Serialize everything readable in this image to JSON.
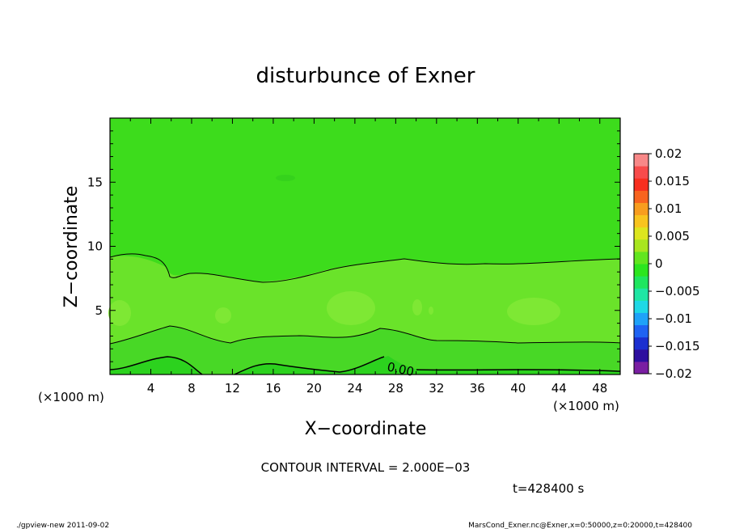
{
  "chart_data": {
    "type": "contour",
    "title": "disturbunce of Exner",
    "xlabel": "X−coordinate",
    "ylabel": "Z−coordinate",
    "x_unit_left": "(×1000 m)",
    "x_unit_right": "(×1000 m)",
    "xlim": [
      0,
      50
    ],
    "ylim": [
      0,
      20
    ],
    "xticks": [
      4,
      8,
      12,
      16,
      20,
      24,
      28,
      32,
      36,
      40,
      44,
      48
    ],
    "yticks": [
      5,
      10,
      15
    ],
    "contour_interval_text": "CONTOUR INTERVAL = 2.000E−03",
    "time_text": "t=428400 s",
    "contour_label": "0.00",
    "colorbar": {
      "labels": [
        "0.02",
        "0.015",
        "0.01",
        "0.005",
        "0",
        "−0.005",
        "−0.01",
        "−0.015",
        "−0.02"
      ],
      "min": -0.02,
      "max": 0.02,
      "colors": [
        "#7a1fa2",
        "#2d0f9f",
        "#1b2fd0",
        "#1f63f3",
        "#1fa2f8",
        "#1fd8e6",
        "#1fe6a4",
        "#1fe65f",
        "#2ce61f",
        "#62e61f",
        "#a8e61f",
        "#dde61f",
        "#f8c41f",
        "#f89d1f",
        "#f8641f",
        "#f82e1f",
        "#f84b4b",
        "#f88888"
      ]
    },
    "bands": [
      {
        "name": "upper",
        "color": "#3ddc1c"
      },
      {
        "name": "middle",
        "color": "#6ae32a"
      },
      {
        "name": "lower",
        "color": "#34d41f"
      },
      {
        "name": "bottom",
        "color": "#2dd61e"
      },
      {
        "name": "blobs",
        "color": "#7ee834"
      }
    ]
  },
  "footer": {
    "left": "./gpview-new   2011-09-02",
    "right": "MarsCond_Exner.nc@Exner,x=0:50000,z=0:20000,t=428400"
  }
}
